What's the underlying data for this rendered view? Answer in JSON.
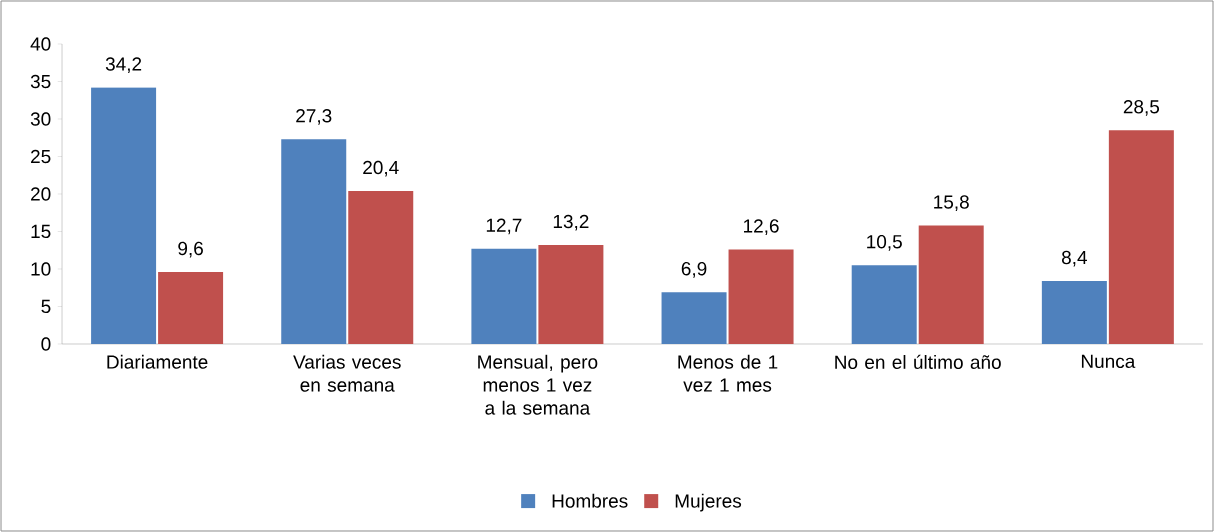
{
  "chart_data": {
    "type": "bar",
    "categories": [
      "Diariamente",
      "Varias veces en semana",
      "Mensual, pero menos 1 vez a la semana",
      "Menos de 1 vez 1 mes",
      "No en el último año",
      "Nunca"
    ],
    "series": [
      {
        "name": "Hombres",
        "color": "#4f81bd",
        "values": [
          34.2,
          27.3,
          12.7,
          6.9,
          10.5,
          8.4
        ],
        "value_labels": [
          "34,2",
          "27,3",
          "12,7",
          "6,9",
          "10,5",
          "8,4"
        ]
      },
      {
        "name": "Mujeres",
        "color": "#c0504d",
        "values": [
          9.6,
          20.4,
          13.2,
          12.6,
          15.8,
          28.5
        ],
        "value_labels": [
          "9,6",
          "20,4",
          "13,2",
          "12,6",
          "15,8",
          "28,5"
        ]
      }
    ],
    "ylim": [
      0,
      40
    ],
    "yticks": [
      0,
      5,
      10,
      15,
      20,
      25,
      30,
      35,
      40
    ],
    "grid": false,
    "legend": "bottom"
  }
}
